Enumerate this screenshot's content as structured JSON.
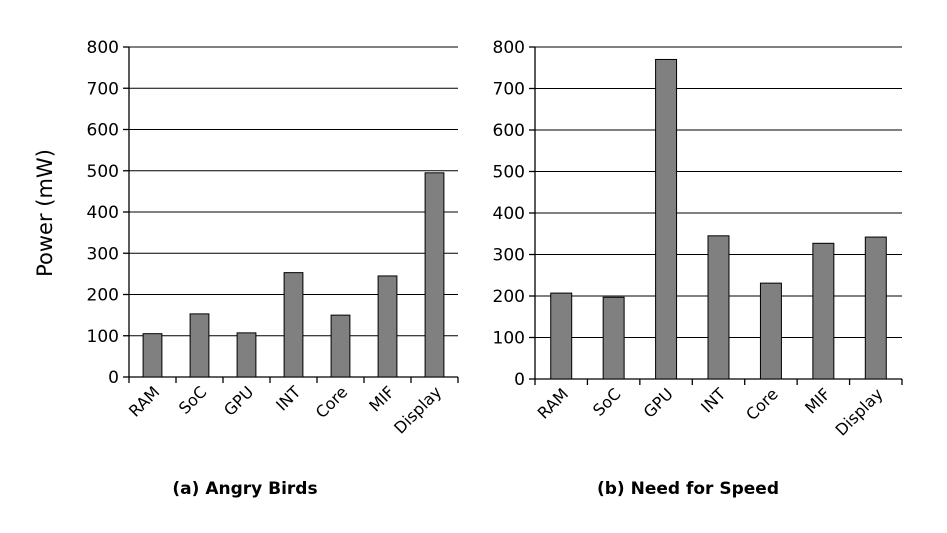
{
  "colors": {
    "bar": "#808080",
    "grid": "#000000"
  },
  "ylabel": "Power (mW)",
  "chart_data": [
    {
      "type": "bar",
      "title": "(a) Angry Birds",
      "categories": [
        "RAM",
        "SoC",
        "GPU",
        "INT",
        "Core",
        "MIF",
        "Display"
      ],
      "values": [
        105,
        153,
        107,
        253,
        150,
        245,
        495
      ],
      "xlabel": "",
      "ylabel": "Power (mW)",
      "ylim": [
        0,
        800
      ],
      "yticks": [
        0,
        100,
        200,
        300,
        400,
        500,
        600,
        700,
        800
      ],
      "grid": true
    },
    {
      "type": "bar",
      "title": "(b) Need for Speed",
      "categories": [
        "RAM",
        "SoC",
        "GPU",
        "INT",
        "Core",
        "MIF",
        "Display"
      ],
      "values": [
        207,
        197,
        770,
        345,
        231,
        327,
        342
      ],
      "xlabel": "",
      "ylabel": "",
      "ylim": [
        0,
        800
      ],
      "yticks": [
        0,
        100,
        200,
        300,
        400,
        500,
        600,
        700,
        800
      ],
      "grid": true
    }
  ]
}
